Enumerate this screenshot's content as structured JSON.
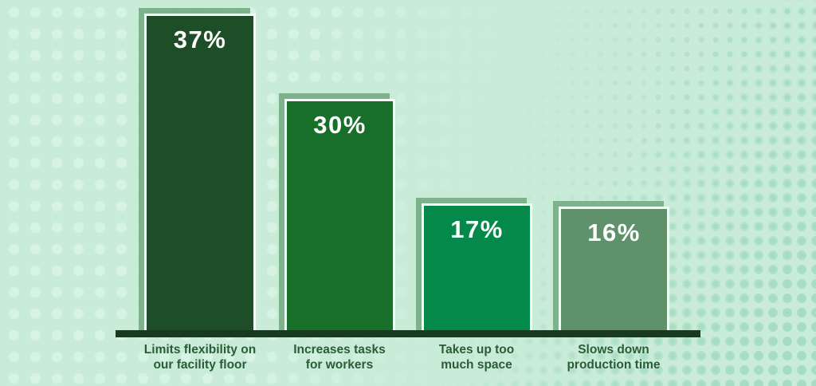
{
  "chart_data": {
    "type": "bar",
    "categories": [
      "Limits flexibility on our facility floor",
      "Increases tasks for workers",
      "Takes up too much space",
      "Slows down production time"
    ],
    "values": [
      37,
      30,
      17,
      16
    ],
    "value_labels": [
      "37%",
      "30%",
      "17%",
      "16%"
    ],
    "title": "",
    "xlabel": "",
    "ylabel": "",
    "ylim": [
      0,
      40
    ],
    "grid": false,
    "legend": false,
    "bar_colors": [
      "#1d4e28",
      "#176f29",
      "#038a4b",
      "#5f916b"
    ],
    "bar_border_color": "#f6fcf8",
    "shadow_color": "#7db28c",
    "axis_color": "#1a3a1f",
    "value_text_color": "#ffffff",
    "category_text_color": "#2a5c35",
    "background_color": "#c9ecd9",
    "dot_color_light": "#d7f3e3",
    "dot_color_dark": "#a7ddc3"
  },
  "bars": [
    {
      "value_label": "37%",
      "label_line1": "Limits flexibility on",
      "label_line2": "our facility floor",
      "color": "#1d4e28"
    },
    {
      "value_label": "30%",
      "label_line1": "Increases tasks",
      "label_line2": "for workers",
      "color": "#176f29"
    },
    {
      "value_label": "17%",
      "label_line1": "Takes up too",
      "label_line2": "much space",
      "color": "#038a4b"
    },
    {
      "value_label": "16%",
      "label_line1": "Slows down",
      "label_line2": "production time",
      "color": "#5f916b"
    }
  ]
}
